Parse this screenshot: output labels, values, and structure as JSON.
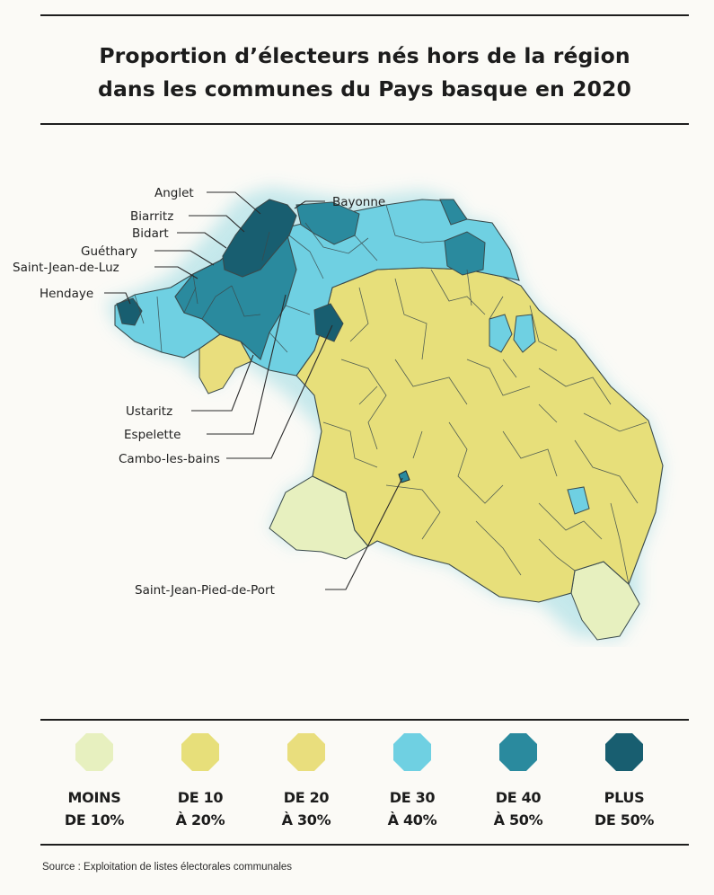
{
  "title": {
    "line1": "Proportion d’électeurs nés hors de la région",
    "line2": "dans les communes du Pays basque en 2020"
  },
  "colors": {
    "moins10": "#e7f0bf",
    "de10a20": "#e7df7a",
    "de20a30": "#e9de7d",
    "de30a40": "#6fd0e2",
    "de40a50": "#2a8a9e",
    "plus50": "#185e70",
    "outline": "#3a4a4c",
    "glow": "#bfe6ea"
  },
  "places": {
    "anglet": "Anglet",
    "biarritz": "Biarritz",
    "bidart": "Bidart",
    "guethary": "Guéthary",
    "saint_jean_de_luz": "Saint-Jean-de-Luz",
    "hendaye": "Hendaye",
    "bayonne": "Bayonne",
    "ustaritz": "Ustaritz",
    "espelette": "Espelette",
    "cambo": "Cambo-les-bains",
    "saint_jean_pied_de_port": "Saint-Jean-Pied-de-Port"
  },
  "legend": [
    {
      "line1": "MOINS",
      "line2": "DE 10%",
      "color": "#e7f0bf"
    },
    {
      "line1": "DE 10",
      "line2": "À 20%",
      "color": "#e7df7a"
    },
    {
      "line1": "DE 20",
      "line2": "À 30%",
      "color": "#e9de7d"
    },
    {
      "line1": "DE 30",
      "line2": "À 40%",
      "color": "#6fd0e2"
    },
    {
      "line1": "DE 40",
      "line2": "À 50%",
      "color": "#2a8a9e"
    },
    {
      "line1": "PLUS",
      "line2": "DE 50%",
      "color": "#185e70"
    }
  ],
  "source": "Source : Exploitation de listes électorales communales"
}
